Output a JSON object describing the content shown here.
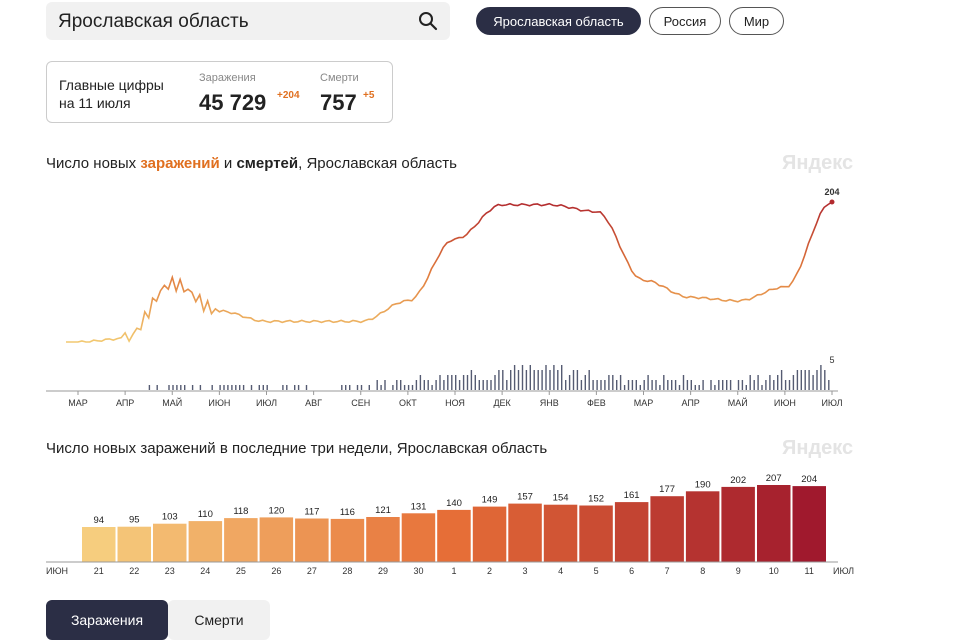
{
  "search": {
    "value": "Ярославская область"
  },
  "region_tabs": [
    {
      "label": "Ярославская область",
      "active": true
    },
    {
      "label": "Россия",
      "active": false
    },
    {
      "label": "Мир",
      "active": false
    }
  ],
  "stats": {
    "label_line1": "Главные цифры",
    "label_line2": "на 11 июля",
    "infections_caption": "Заражения",
    "infections_value": "45 729",
    "infections_delta": "+204",
    "deaths_caption": "Смерти",
    "deaths_value": "757",
    "deaths_delta": "+5"
  },
  "chart1": {
    "title_part1": "Число новых ",
    "title_hl": "заражений",
    "title_part2": " и ",
    "title_bold": "смертей",
    "title_part3": ", Ярославская область",
    "watermark": "Яндекс"
  },
  "chart2": {
    "title": "Число новых заражений в последние три недели, Ярославская область",
    "watermark": "Яндекс"
  },
  "bottom_tabs": {
    "infections": "Заражения",
    "deaths": "Смерти"
  },
  "colors": {
    "accent": "#e07020",
    "dark": "#2b2e45",
    "weekend": "#e0501e"
  },
  "chart_data": [
    {
      "type": "line",
      "title": "Число новых заражений и смертей, Ярославская область",
      "x_tick_labels": [
        "МАР",
        "АПР",
        "МАЙ",
        "ИЮН",
        "ИЮЛ",
        "АВГ",
        "СЕН",
        "ОКТ",
        "НОЯ",
        "ДЕК",
        "ЯНВ",
        "ФЕВ",
        "МАР",
        "АПР",
        "МАЙ",
        "ИЮН",
        "ИЮЛ"
      ],
      "series": [
        {
          "name": "заражения",
          "approx_monthly_values": [
            0,
            5,
            85,
            45,
            30,
            30,
            30,
            60,
            150,
            200,
            200,
            190,
            90,
            65,
            60,
            80,
            204
          ],
          "last_label": "204"
        },
        {
          "name": "смерти",
          "chart_subtype": "bar",
          "approx_monthly_values": [
            0,
            0,
            1,
            1,
            1,
            1,
            1,
            2,
            3,
            4,
            4,
            3,
            2,
            2,
            2,
            3,
            5
          ],
          "last_label": "5"
        }
      ],
      "grid": false
    },
    {
      "type": "bar",
      "title": "Число новых заражений в последние три недели, Ярославская область",
      "start_label": "ИЮН",
      "end_label": "ИЮЛ",
      "categories": [
        "21",
        "22",
        "23",
        "24",
        "25",
        "26",
        "27",
        "28",
        "29",
        "30",
        "1",
        "2",
        "3",
        "4",
        "5",
        "6",
        "7",
        "8",
        "9",
        "10",
        "11"
      ],
      "values": [
        94,
        95,
        103,
        110,
        118,
        120,
        117,
        116,
        121,
        131,
        140,
        149,
        157,
        154,
        152,
        161,
        177,
        190,
        202,
        207,
        204
      ],
      "weekend_categories": [
        "26",
        "27",
        "3",
        "4",
        "10",
        "11"
      ]
    }
  ]
}
